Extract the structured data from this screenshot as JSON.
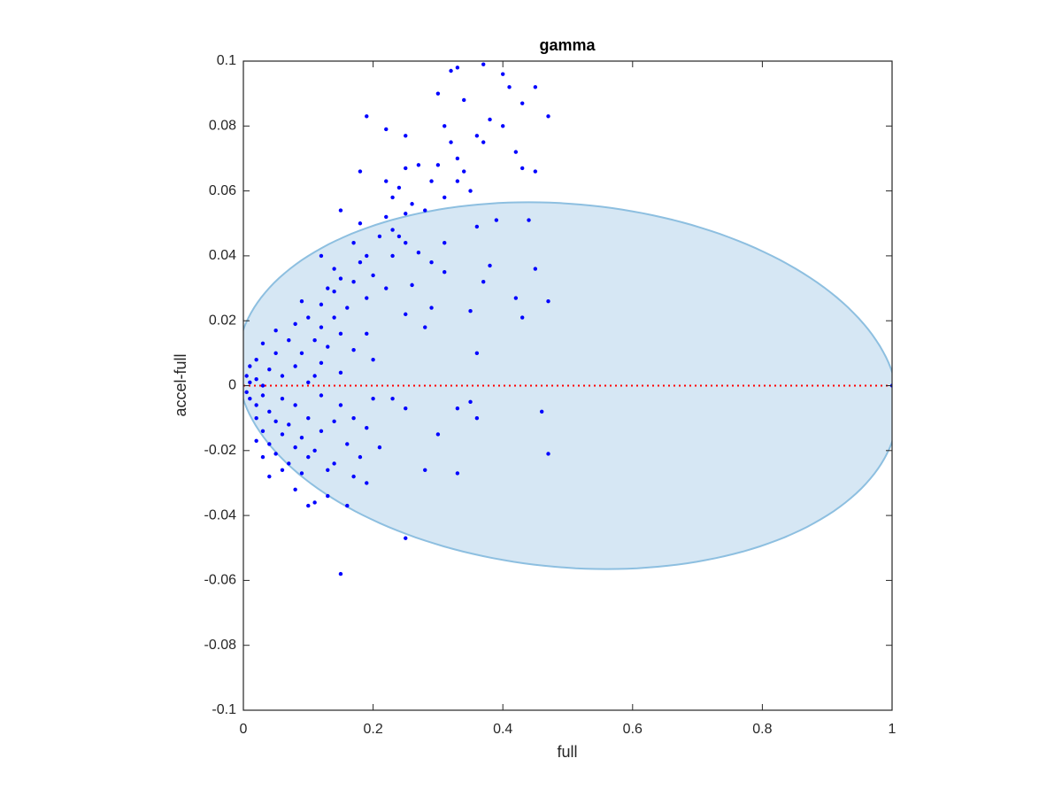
{
  "chart_data": {
    "type": "scatter",
    "title": "gamma",
    "x_label": "full",
    "y_label": "accel-full",
    "xlim": [
      0,
      1
    ],
    "ylim": [
      -0.1,
      0.1
    ],
    "xticks": [
      0,
      0.2,
      0.4,
      0.6,
      0.8,
      1
    ],
    "yticks": [
      -0.1,
      -0.08,
      -0.06,
      -0.04,
      -0.02,
      0,
      0.02,
      0.04,
      0.06,
      0.08,
      0.1
    ],
    "color": "#0000ff",
    "reference_line": {
      "y": 0,
      "color": "#ff0000"
    },
    "ellipse": {
      "center": [
        0.5,
        0
      ],
      "a": 0.506,
      "b": 0.0565,
      "shear": 0.06,
      "fill": "#d6e7f4",
      "stroke": "#8dbfe0"
    },
    "x": [
      0.33,
      0.32,
      0.37,
      0.3,
      0.4,
      0.41,
      0.45,
      0.34,
      0.43,
      0.38,
      0.4,
      0.47,
      0.31,
      0.36,
      0.42,
      0.19,
      0.22,
      0.25,
      0.32,
      0.37,
      0.33,
      0.3,
      0.27,
      0.25,
      0.43,
      0.45,
      0.18,
      0.34,
      0.29,
      0.33,
      0.22,
      0.24,
      0.35,
      0.31,
      0.23,
      0.26,
      0.15,
      0.28,
      0.25,
      0.22,
      0.39,
      0.44,
      0.18,
      0.36,
      0.23,
      0.21,
      0.24,
      0.17,
      0.25,
      0.31,
      0.27,
      0.19,
      0.23,
      0.12,
      0.29,
      0.18,
      0.14,
      0.38,
      0.45,
      0.31,
      0.2,
      0.15,
      0.17,
      0.37,
      0.13,
      0.26,
      0.22,
      0.14,
      0.42,
      0.47,
      0.09,
      0.19,
      0.12,
      0.16,
      0.29,
      0.35,
      0.25,
      0.1,
      0.14,
      0.43,
      0.28,
      0.08,
      0.12,
      0.05,
      0.15,
      0.19,
      0.07,
      0.11,
      0.03,
      0.13,
      0.17,
      0.36,
      0.09,
      0.05,
      0.2,
      0.02,
      0.12,
      0.08,
      0.01,
      0.04,
      0.15,
      0.11,
      0.06,
      0.02,
      0.1,
      0.01,
      0.03,
      0.005,
      0.005,
      0.01,
      0.02,
      0.03,
      0.04,
      0.06,
      0.08,
      0.12,
      0.2,
      0.23,
      0.15,
      0.25,
      0.33,
      0.35,
      0.46,
      0.02,
      0.05,
      0.07,
      0.1,
      0.14,
      0.17,
      0.03,
      0.06,
      0.09,
      0.12,
      0.19,
      0.36,
      0.04,
      0.08,
      0.11,
      0.16,
      0.21,
      0.47,
      0.3,
      0.05,
      0.07,
      0.1,
      0.14,
      0.18,
      0.06,
      0.09,
      0.13,
      0.17,
      0.28,
      0.33,
      0.19,
      0.04,
      0.08,
      0.11,
      0.16,
      0.13,
      0.1,
      0.25,
      0.15,
      0.02,
      0.03,
      1.0
    ],
    "y": [
      0.098,
      0.097,
      0.099,
      0.09,
      0.096,
      0.092,
      0.092,
      0.088,
      0.087,
      0.082,
      0.08,
      0.083,
      0.08,
      0.077,
      0.072,
      0.083,
      0.079,
      0.077,
      0.075,
      0.075,
      0.07,
      0.068,
      0.068,
      0.067,
      0.067,
      0.066,
      0.066,
      0.066,
      0.063,
      0.063,
      0.063,
      0.061,
      0.06,
      0.058,
      0.058,
      0.056,
      0.054,
      0.054,
      0.053,
      0.052,
      0.051,
      0.051,
      0.05,
      0.049,
      0.048,
      0.046,
      0.046,
      0.044,
      0.044,
      0.044,
      0.041,
      0.04,
      0.04,
      0.04,
      0.038,
      0.038,
      0.036,
      0.037,
      0.036,
      0.035,
      0.034,
      0.033,
      0.032,
      0.032,
      0.03,
      0.031,
      0.03,
      0.029,
      0.027,
      0.026,
      0.026,
      0.027,
      0.025,
      0.024,
      0.024,
      0.023,
      0.022,
      0.021,
      0.021,
      0.021,
      0.018,
      0.019,
      0.018,
      0.017,
      0.016,
      0.016,
      0.014,
      0.014,
      0.013,
      0.012,
      0.011,
      0.01,
      0.01,
      0.01,
      0.008,
      0.008,
      0.007,
      0.006,
      0.006,
      0.005,
      0.004,
      0.003,
      0.003,
      0.002,
      0.001,
      0.001,
      0.0,
      0.003,
      -0.002,
      -0.004,
      -0.006,
      -0.003,
      -0.008,
      -0.004,
      -0.006,
      -0.003,
      -0.004,
      -0.004,
      -0.006,
      -0.007,
      -0.007,
      -0.005,
      -0.008,
      -0.01,
      -0.011,
      -0.012,
      -0.01,
      -0.011,
      -0.01,
      -0.014,
      -0.015,
      -0.016,
      -0.014,
      -0.013,
      -0.01,
      -0.018,
      -0.019,
      -0.02,
      -0.018,
      -0.019,
      -0.021,
      -0.015,
      -0.021,
      -0.024,
      -0.022,
      -0.024,
      -0.022,
      -0.026,
      -0.027,
      -0.026,
      -0.028,
      -0.026,
      -0.027,
      -0.03,
      -0.028,
      -0.032,
      -0.036,
      -0.037,
      -0.034,
      -0.037,
      -0.047,
      -0.058,
      -0.017,
      -0.022,
      0.0
    ]
  }
}
